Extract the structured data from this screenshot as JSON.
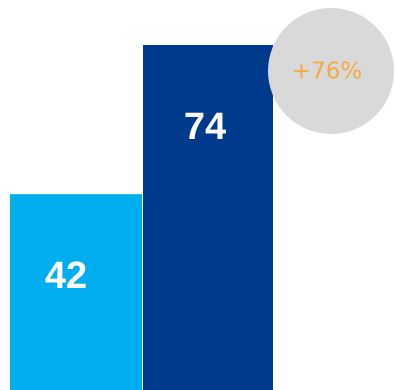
{
  "chart_data": {
    "type": "bar",
    "categories": [
      "",
      ""
    ],
    "values": [
      42,
      74
    ],
    "data_labels": [
      "42",
      "74"
    ],
    "colors": [
      "#00AEEF",
      "#003A8C"
    ],
    "ylim": [
      0,
      80
    ],
    "grid": false,
    "annotations": [
      {
        "text": "+76%",
        "color": "#F7A941",
        "background": "#D9D9D9"
      }
    ]
  }
}
